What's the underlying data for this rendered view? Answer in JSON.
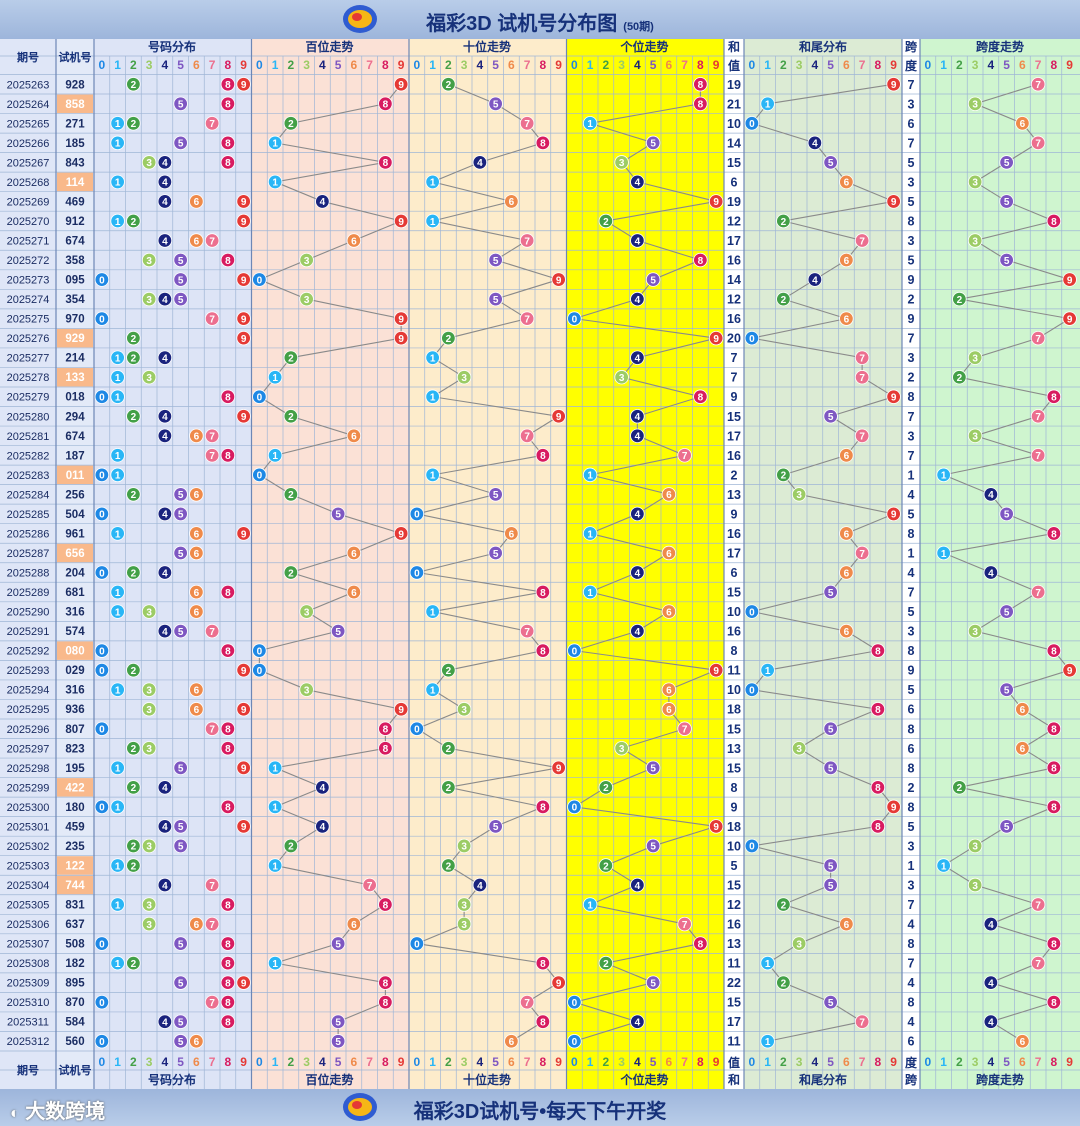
{
  "header": {
    "title": "福彩3D 试机号分布图",
    "subtitle": "(50期)"
  },
  "footer": {
    "slogan": "福彩3D试机号•每天下午开奖",
    "brand": "大数跨境"
  },
  "columns": {
    "period": "期号",
    "number": "试机号",
    "dist": "号码分布",
    "hundreds": "百位走势",
    "tens": "十位走势",
    "units": "个位走势",
    "sum": "和值",
    "sumtail": "和尾分布",
    "span": "跨度",
    "spantrend": "跨度走势"
  },
  "colors": {
    "digits": [
      "#1e88e5",
      "#29b6f6",
      "#43a047",
      "#9ccc65",
      "#1a237e",
      "#7e57c2",
      "#ef8a4a",
      "#ec6f8f",
      "#d81b60",
      "#e53935"
    ],
    "panel_dist": "#dde4f6",
    "panel_hundreds": "#fbe1d6",
    "panel_tens": "#fdeccb",
    "panel_units": "#ffff00",
    "panel_sumtail": "#dcebd4",
    "panel_spantrend": "#cff5cf",
    "highlight_number": "#f9b98b"
  },
  "chart_data": {
    "type": "table",
    "periods": [
      "2025263",
      "2025264",
      "2025265",
      "2025266",
      "2025267",
      "2025268",
      "2025269",
      "2025270",
      "2025271",
      "2025272",
      "2025273",
      "2025274",
      "2025275",
      "2025276",
      "2025277",
      "2025278",
      "2025279",
      "2025280",
      "2025281",
      "2025282",
      "2025283",
      "2025284",
      "2025285",
      "2025286",
      "2025287",
      "2025288",
      "2025289",
      "2025290",
      "2025291",
      "2025292",
      "2025293",
      "2025294",
      "2025295",
      "2025296",
      "2025297",
      "2025298",
      "2025299",
      "2025300",
      "2025301",
      "2025302",
      "2025303",
      "2025304",
      "2025305",
      "2025306",
      "2025307",
      "2025308",
      "2025309",
      "2025310",
      "2025311",
      "2025312"
    ],
    "numbers": [
      "928",
      "858",
      "271",
      "185",
      "843",
      "114",
      "469",
      "912",
      "674",
      "358",
      "095",
      "354",
      "970",
      "929",
      "214",
      "133",
      "018",
      "294",
      "674",
      "187",
      "011",
      "256",
      "504",
      "961",
      "656",
      "204",
      "681",
      "316",
      "574",
      "080",
      "029",
      "316",
      "936",
      "807",
      "823",
      "195",
      "422",
      "180",
      "459",
      "235",
      "122",
      "744",
      "831",
      "637",
      "508",
      "182",
      "895",
      "870",
      "584",
      "560"
    ],
    "sums": [
      19,
      21,
      10,
      14,
      15,
      6,
      19,
      12,
      17,
      16,
      14,
      12,
      16,
      20,
      7,
      7,
      9,
      15,
      17,
      16,
      2,
      13,
      9,
      16,
      17,
      6,
      15,
      10,
      16,
      8,
      11,
      10,
      18,
      15,
      13,
      15,
      8,
      9,
      18,
      10,
      5,
      15,
      12,
      16,
      13,
      11,
      22,
      15,
      17,
      11
    ],
    "spans": [
      7,
      3,
      6,
      7,
      5,
      3,
      5,
      8,
      3,
      5,
      9,
      2,
      9,
      7,
      3,
      2,
      8,
      7,
      3,
      7,
      1,
      4,
      5,
      8,
      1,
      4,
      7,
      5,
      3,
      8,
      9,
      5,
      6,
      8,
      6,
      8,
      2,
      8,
      5,
      3,
      1,
      3,
      7,
      4,
      8,
      7,
      4,
      8,
      4,
      6
    ],
    "highlight_rows": [
      "2025264",
      "2025268",
      "2025276",
      "2025278",
      "2025283",
      "2025287",
      "2025292",
      "2025299",
      "2025303",
      "2025304"
    ]
  }
}
